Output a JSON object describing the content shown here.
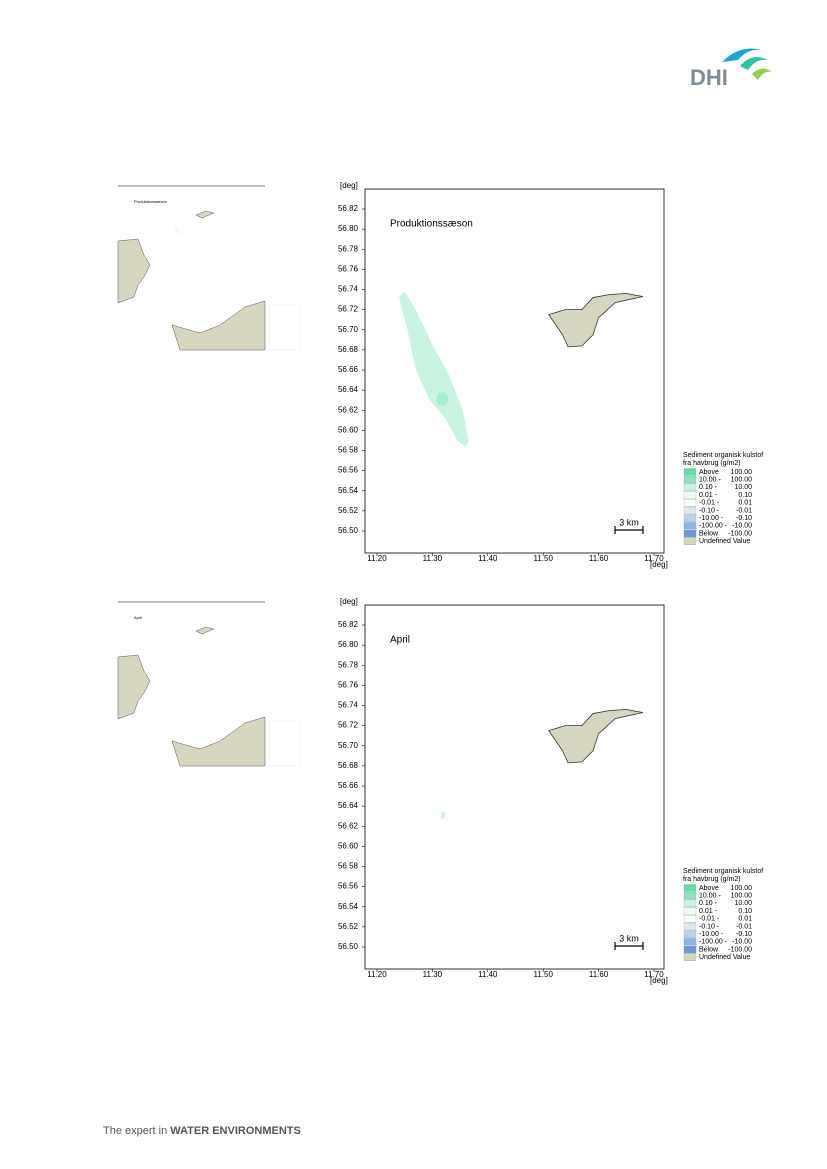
{
  "header": {
    "logo": "DHI"
  },
  "axes": {
    "unit": "[deg]",
    "yticks": [
      "56.82",
      "56.80",
      "56.78",
      "56.76",
      "56.74",
      "56.72",
      "56.70",
      "56.68",
      "56.66",
      "56.64",
      "56.62",
      "56.60",
      "56.58",
      "56.56",
      "56.54",
      "56.52",
      "56.50"
    ],
    "xticks": [
      "11.20",
      "11.30",
      "11.40",
      "11.50",
      "11.60",
      "11.70"
    ]
  },
  "scale_bar": "3 km",
  "legend": {
    "title": [
      "Sediment organisk kulstof",
      "fra havbrug (g/m2)"
    ],
    "items": [
      {
        "from": "Above",
        "to": "100.00",
        "color": "#5ee0a8"
      },
      {
        "from": "10.00 -",
        "to": "100.00",
        "color": "#85e8bd"
      },
      {
        "from": "0.10 -",
        "to": "10.00",
        "color": "#c8f5e0"
      },
      {
        "from": "0.01 -",
        "to": "0.10",
        "color": "#eefcf5"
      },
      {
        "from": "-0.01 -",
        "to": "0.01",
        "color": "#ffffff"
      },
      {
        "from": "-0.10 -",
        "to": "-0.01",
        "color": "#dde8f5"
      },
      {
        "from": "-10.00 -",
        "to": "-0.10",
        "color": "#b8d0ee"
      },
      {
        "from": "-100.00 -",
        "to": "-10.00",
        "color": "#8fb3e6"
      },
      {
        "from": "Below",
        "to": "-100.00",
        "color": "#6a9ad8"
      },
      {
        "from": "Undefined Value",
        "to": "",
        "color": "#d8d5bf"
      }
    ]
  },
  "panels": [
    {
      "title": "Produktionssæson"
    },
    {
      "title": "April"
    }
  ],
  "footer": {
    "prefix": "The expert in ",
    "emphasis": "WATER ENVIRONMENTS"
  }
}
